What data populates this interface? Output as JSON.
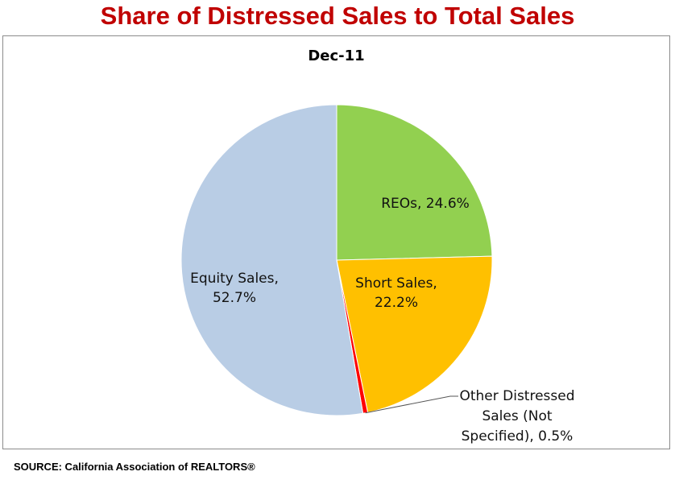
{
  "title": "Share of Distressed Sales to Total Sales",
  "source": "SOURCE: California Association of REALTORS®",
  "chart_data": {
    "type": "pie",
    "title": "Dec-11",
    "start_angle_deg": 0,
    "direction": "clockwise",
    "slices": [
      {
        "name": "REOs",
        "value": 24.6,
        "color": "#92d050",
        "label_lines": [
          "REOs, 24.6%"
        ]
      },
      {
        "name": "Short Sales",
        "value": 22.2,
        "color": "#ffc000",
        "label_lines": [
          "Short Sales,",
          "22.2%"
        ]
      },
      {
        "name": "Other Distressed Sales (Not Specified)",
        "value": 0.5,
        "color": "#ff0000",
        "label_lines": [
          "Other Distressed",
          "Sales (Not",
          "Specified), 0.5%"
        ]
      },
      {
        "name": "Equity Sales",
        "value": 52.7,
        "color": "#b9cde5",
        "label_lines": [
          "Equity Sales,",
          "52.7%"
        ]
      }
    ]
  }
}
